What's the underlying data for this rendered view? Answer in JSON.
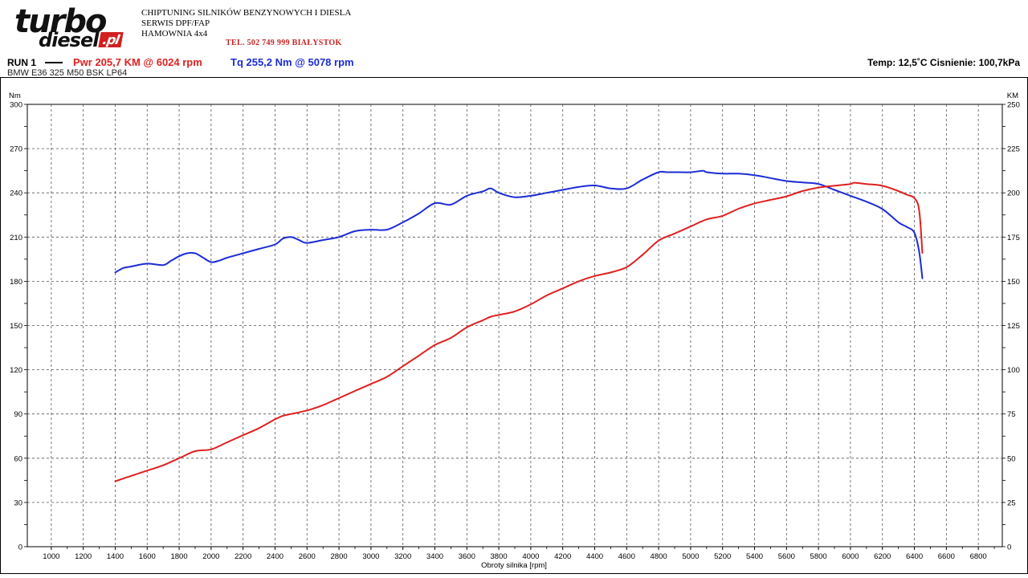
{
  "header": {
    "logo_line1": "turbo",
    "logo_line2": "diesel",
    "logo_suffix": ".pl",
    "company_line1": "CHIPTUNING SILNIKÓW BENZYNOWYCH I DIESLA",
    "company_line2": "SERWIS DPF/FAP",
    "company_line3": "HAMOWNIA 4x4",
    "phone": "TEL. 502 749 999   BIAŁYSTOK"
  },
  "run": {
    "label": "RUN 1",
    "power_summary": "Pwr  205,7 KM @ 6024 rpm",
    "torque_summary": "Tq 255,2 Nm @ 5078 rpm",
    "conditions": "Temp: 12,5˚C   Cisnienie: 100,7kPa",
    "car": "BMW E36 325 M50 BSK LP64"
  },
  "colors": {
    "power": "#e02020",
    "torque": "#1c2cd6",
    "grid": "#555555"
  },
  "chart_data": {
    "type": "line",
    "xlabel": "Obroty silnika [rpm]",
    "ylabel_left": "Nm",
    "ylabel_right": "KM",
    "xlim": [
      850,
      6950
    ],
    "ylim_left": [
      0,
      300
    ],
    "ylim_right": [
      0,
      250
    ],
    "x_ticks": [
      1000,
      1200,
      1400,
      1600,
      1800,
      2000,
      2200,
      2400,
      2600,
      2800,
      3000,
      3200,
      3400,
      3600,
      3800,
      4000,
      4200,
      4400,
      4600,
      4800,
      5000,
      5200,
      5400,
      5600,
      5800,
      6000,
      6200,
      6400,
      6600,
      6800
    ],
    "y_left_ticks": [
      0,
      30,
      60,
      90,
      120,
      150,
      180,
      210,
      240,
      270,
      300
    ],
    "y_right_ticks": [
      0,
      25,
      50,
      75,
      100,
      125,
      150,
      175,
      200,
      225,
      250
    ],
    "grid": true,
    "series": [
      {
        "name": "Tq",
        "axis": "left",
        "color": "#1c2cd6",
        "x": [
          1400,
          1450,
          1500,
          1600,
          1700,
          1750,
          1800,
          1850,
          1900,
          1950,
          2000,
          2050,
          2100,
          2200,
          2300,
          2400,
          2450,
          2500,
          2550,
          2600,
          2700,
          2800,
          2900,
          3000,
          3100,
          3200,
          3300,
          3400,
          3500,
          3600,
          3700,
          3750,
          3800,
          3900,
          4000,
          4100,
          4200,
          4300,
          4400,
          4500,
          4600,
          4700,
          4800,
          4850,
          4900,
          5000,
          5078,
          5100,
          5200,
          5300,
          5400,
          5500,
          5600,
          5700,
          5800,
          5900,
          6000,
          6100,
          6200,
          6300,
          6350,
          6400,
          6430,
          6450
        ],
        "values": [
          186,
          189,
          190,
          192,
          191,
          194,
          197,
          199,
          199,
          196,
          193,
          194,
          196,
          199,
          202,
          205,
          209,
          210,
          208,
          206,
          208,
          210,
          214,
          215,
          215,
          220,
          226,
          233,
          232,
          238,
          241,
          243,
          240,
          237,
          238,
          240,
          242,
          244,
          245,
          243,
          243,
          249,
          254,
          254,
          254,
          254,
          255,
          254,
          253,
          253,
          252,
          250,
          248,
          247,
          246,
          242,
          238,
          234,
          229,
          220,
          217,
          213,
          200,
          182
        ]
      },
      {
        "name": "Pwr",
        "axis": "right",
        "color": "#e02020",
        "x": [
          1400,
          1500,
          1600,
          1700,
          1800,
          1900,
          2000,
          2100,
          2200,
          2300,
          2400,
          2450,
          2500,
          2600,
          2700,
          2800,
          2900,
          3000,
          3100,
          3200,
          3300,
          3400,
          3500,
          3600,
          3700,
          3750,
          3800,
          3900,
          4000,
          4100,
          4200,
          4300,
          4400,
          4500,
          4600,
          4700,
          4800,
          4900,
          5000,
          5100,
          5200,
          5300,
          5400,
          5500,
          5600,
          5700,
          5800,
          5900,
          6000,
          6024,
          6100,
          6200,
          6300,
          6350,
          6400,
          6430,
          6450
        ],
        "values": [
          37,
          40,
          43,
          46,
          50,
          54,
          55,
          59,
          63,
          67,
          72,
          74,
          75,
          77,
          80,
          84,
          88,
          92,
          96,
          102,
          108,
          114,
          118,
          124,
          128,
          130,
          131,
          133,
          137,
          142,
          146,
          150,
          153,
          155,
          158,
          165,
          173,
          177,
          181,
          185,
          187,
          191,
          194,
          196,
          198,
          201,
          203,
          204,
          205,
          205.7,
          205,
          204,
          201,
          199,
          197,
          190,
          166
        ]
      }
    ]
  }
}
